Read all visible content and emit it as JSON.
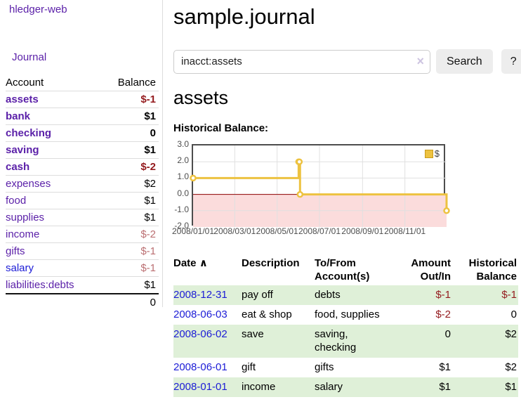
{
  "app": {
    "brand": "hledger-web",
    "nav_journal": "Journal"
  },
  "sidebar": {
    "header": {
      "account": "Account",
      "balance": "Balance"
    },
    "accounts": [
      {
        "name": "assets",
        "depth": 0,
        "bold": true,
        "link": "purple",
        "balance": "$-1",
        "balance_style": "neg-strong"
      },
      {
        "name": "bank",
        "depth": 1,
        "bold": true,
        "link": "purple",
        "balance": "$1",
        "balance_style": "pos"
      },
      {
        "name": "checking",
        "depth": 2,
        "bold": true,
        "link": "purple",
        "balance": "0",
        "balance_style": "pos"
      },
      {
        "name": "saving",
        "depth": 2,
        "bold": true,
        "link": "purple",
        "balance": "$1",
        "balance_style": "pos"
      },
      {
        "name": "cash",
        "depth": 1,
        "bold": true,
        "link": "purple",
        "balance": "$-2",
        "balance_style": "neg-strong"
      },
      {
        "name": "expenses",
        "depth": 0,
        "bold": false,
        "link": "purple",
        "balance": "$2",
        "balance_style": "pos"
      },
      {
        "name": "food",
        "depth": 1,
        "bold": false,
        "link": "purple",
        "balance": "$1",
        "balance_style": "pos"
      },
      {
        "name": "supplies",
        "depth": 1,
        "bold": false,
        "link": "purple",
        "balance": "$1",
        "balance_style": "pos"
      },
      {
        "name": "income",
        "depth": 0,
        "bold": false,
        "link": "purple",
        "balance": "$-2",
        "balance_style": "neg-muted"
      },
      {
        "name": "gifts",
        "depth": 1,
        "bold": false,
        "link": "purple",
        "balance": "$-1",
        "balance_style": "neg-muted"
      },
      {
        "name": "salary",
        "depth": 1,
        "bold": false,
        "link": "blue",
        "balance": "$-1",
        "balance_style": "neg-muted"
      },
      {
        "name": "liabilities:debts",
        "depth": 0,
        "bold": false,
        "link": "purple",
        "balance": "$1",
        "balance_style": "pos"
      }
    ],
    "total": "0"
  },
  "header": {
    "title": "sample.journal"
  },
  "search": {
    "value": "inacct:assets",
    "clear_icon": "×",
    "button": "Search",
    "help_button": "?"
  },
  "account_page": {
    "title": "assets",
    "chart_label": "Historical Balance:"
  },
  "chart_data": {
    "type": "line",
    "style": "step",
    "title": "Historical Balance:",
    "xlabel": "",
    "ylabel": "",
    "series": [
      {
        "name": "$",
        "color": "#edc240",
        "points": [
          [
            "2008-01-01",
            1
          ],
          [
            "2008-06-01",
            2
          ],
          [
            "2008-06-02",
            2
          ],
          [
            "2008-06-03",
            0
          ],
          [
            "2008-12-31",
            -1
          ]
        ]
      }
    ],
    "ylim": [
      -2,
      3
    ],
    "yticks": [
      "3.0",
      "2.0",
      "1.0",
      "0.0",
      "-1.0",
      "-2.0"
    ],
    "xticks": [
      "2008/01/01",
      "2008/03/01",
      "2008/05/01",
      "2008/07/01",
      "2008/09/01",
      "2008/11/01"
    ],
    "xrange": [
      "2008-01-01",
      "2008-12-31"
    ],
    "grid": true,
    "negative_region": {
      "below": 0,
      "fill": "#fbdcdc",
      "line_color": "#8b0000"
    },
    "legend": {
      "label": "$",
      "position": "top-right"
    }
  },
  "journal_table": {
    "columns": [
      "Date",
      "Description",
      "To/From Account(s)",
      "Amount Out/In",
      "Historical Balance"
    ],
    "sort_icon": "∧",
    "rows": [
      {
        "date": "2008-12-31",
        "description": "pay off",
        "accounts": "debts",
        "amount": "$-1",
        "amount_negative": true,
        "balance": "$-1",
        "balance_negative": true
      },
      {
        "date": "2008-06-03",
        "description": "eat & shop",
        "accounts": "food, supplies",
        "amount": "$-2",
        "amount_negative": true,
        "balance": "0",
        "balance_negative": false
      },
      {
        "date": "2008-06-02",
        "description": "save",
        "accounts": "saving, checking",
        "amount": "0",
        "amount_negative": false,
        "balance": "$2",
        "balance_negative": false
      },
      {
        "date": "2008-06-01",
        "description": "gift",
        "accounts": "gifts",
        "amount": "$1",
        "amount_negative": false,
        "balance": "$2",
        "balance_negative": false
      },
      {
        "date": "2008-01-01",
        "description": "income",
        "accounts": "salary",
        "amount": "$1",
        "amount_negative": false,
        "balance": "$1",
        "balance_negative": false
      }
    ]
  },
  "colors": {
    "link_purple": "#5a1fa8",
    "link_blue": "#1c1cd6",
    "negative_strong": "#941b1e",
    "negative_muted": "#bb6f72",
    "row_stripe_green": "#dff0d8",
    "series_yellow": "#edc240",
    "chart_negative_fill": "#fbdcdc",
    "chart_zero_line": "#8b0000"
  }
}
